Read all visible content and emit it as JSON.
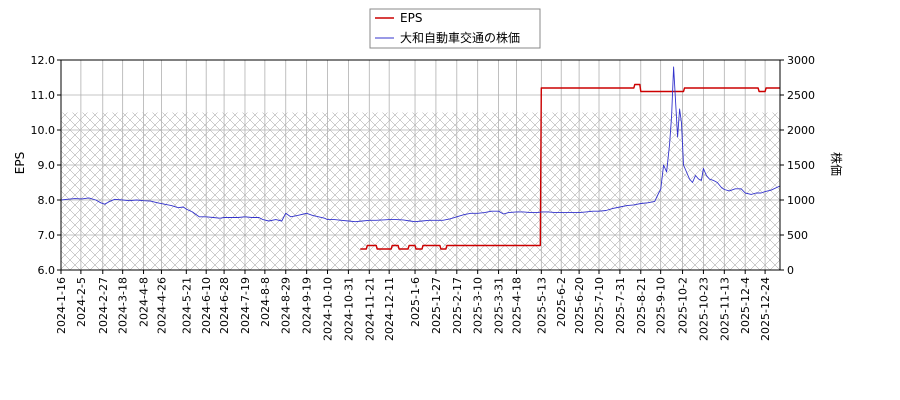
{
  "chart_data": {
    "type": "line",
    "legend": {
      "placement": "top-center",
      "entries": [
        "EPS",
        "大和自動車交通の株価"
      ]
    },
    "left_axis": {
      "label": "EPS",
      "ylim": [
        6.0,
        12.0
      ],
      "ticks": [
        "6.0",
        "7.0",
        "8.0",
        "9.0",
        "10.0",
        "11.0",
        "12.0"
      ]
    },
    "right_axis": {
      "label": "株価",
      "ylim": [
        0,
        3000
      ],
      "ticks": [
        "0",
        "500",
        "1000",
        "1500",
        "2000",
        "2500",
        "3000"
      ]
    },
    "x_range": [
      "2024-01-16",
      "2026-01-08"
    ],
    "x_ticks": [
      "2024-1-16",
      "2024-2-5",
      "2024-2-27",
      "2024-3-18",
      "2024-4-8",
      "2024-4-26",
      "2024-5-21",
      "2024-6-10",
      "2024-6-28",
      "2024-7-19",
      "2024-8-8",
      "2024-8-29",
      "2024-9-19",
      "2024-10-10",
      "2024-10-31",
      "2024-11-21",
      "2024-12-11",
      "2025-1-6",
      "2025-1-27",
      "2025-2-17",
      "2025-3-10",
      "2025-3-31",
      "2025-4-18",
      "2025-5-13",
      "2025-6-2",
      "2025-6-20",
      "2025-7-10",
      "2025-7-31",
      "2025-8-21",
      "2025-9-10",
      "2025-10-2",
      "2025-10-23",
      "2025-11-13",
      "2025-12-4",
      "2025-12-24"
    ],
    "grid": true,
    "hatched_band": {
      "axis": "right",
      "range": [
        0,
        2250
      ]
    },
    "colors": {
      "eps": "#cc0000",
      "price": "#3333cc",
      "grid": "#b0b0b0",
      "hatch": "#999999"
    },
    "series": [
      {
        "name": "EPS",
        "axis": "left",
        "points": [
          [
            "2024-11-12",
            6.6
          ],
          [
            "2024-11-18",
            6.6
          ],
          [
            "2024-11-19",
            6.7
          ],
          [
            "2024-11-28",
            6.7
          ],
          [
            "2024-11-29",
            6.6
          ],
          [
            "2024-12-13",
            6.6
          ],
          [
            "2024-12-14",
            6.7
          ],
          [
            "2024-12-20",
            6.7
          ],
          [
            "2024-12-21",
            6.6
          ],
          [
            "2024-12-30",
            6.6
          ],
          [
            "2024-12-31",
            6.7
          ],
          [
            "2025-01-06",
            6.7
          ],
          [
            "2025-01-07",
            6.6
          ],
          [
            "2025-01-13",
            6.6
          ],
          [
            "2025-01-14",
            6.7
          ],
          [
            "2025-01-31",
            6.7
          ],
          [
            "2025-02-01",
            6.6
          ],
          [
            "2025-02-06",
            6.6
          ],
          [
            "2025-02-07",
            6.7
          ],
          [
            "2025-05-12",
            6.7
          ],
          [
            "2025-05-13",
            11.2
          ],
          [
            "2025-08-14",
            11.2
          ],
          [
            "2025-08-15",
            11.3
          ],
          [
            "2025-08-20",
            11.3
          ],
          [
            "2025-08-21",
            11.1
          ],
          [
            "2025-10-03",
            11.1
          ],
          [
            "2025-10-04",
            11.2
          ],
          [
            "2025-12-17",
            11.2
          ],
          [
            "2025-12-18",
            11.1
          ],
          [
            "2025-12-24",
            11.1
          ],
          [
            "2025-12-25",
            11.2
          ],
          [
            "2026-01-08",
            11.2
          ]
        ]
      },
      {
        "name": "大和自動車交通の株価",
        "axis": "right",
        "points": [
          [
            "2024-01-16",
            1000
          ],
          [
            "2024-01-22",
            1010
          ],
          [
            "2024-01-30",
            1020
          ],
          [
            "2024-02-06",
            1015
          ],
          [
            "2024-02-13",
            1030
          ],
          [
            "2024-02-20",
            1000
          ],
          [
            "2024-02-25",
            960
          ],
          [
            "2024-02-29",
            940
          ],
          [
            "2024-03-05",
            980
          ],
          [
            "2024-03-10",
            1010
          ],
          [
            "2024-03-18",
            1000
          ],
          [
            "2024-03-25",
            990
          ],
          [
            "2024-04-01",
            1000
          ],
          [
            "2024-04-08",
            990
          ],
          [
            "2024-04-15",
            985
          ],
          [
            "2024-04-22",
            960
          ],
          [
            "2024-04-29",
            940
          ],
          [
            "2024-05-06",
            920
          ],
          [
            "2024-05-13",
            890
          ],
          [
            "2024-05-18",
            900
          ],
          [
            "2024-05-21",
            870
          ],
          [
            "2024-05-27",
            830
          ],
          [
            "2024-06-03",
            760
          ],
          [
            "2024-06-10",
            760
          ],
          [
            "2024-06-17",
            750
          ],
          [
            "2024-06-24",
            740
          ],
          [
            "2024-06-28",
            750
          ],
          [
            "2024-07-05",
            750
          ],
          [
            "2024-07-12",
            750
          ],
          [
            "2024-07-19",
            760
          ],
          [
            "2024-07-26",
            750
          ],
          [
            "2024-08-02",
            750
          ],
          [
            "2024-08-06",
            720
          ],
          [
            "2024-08-12",
            700
          ],
          [
            "2024-08-19",
            720
          ],
          [
            "2024-08-25",
            700
          ],
          [
            "2024-08-29",
            810
          ],
          [
            "2024-09-03",
            760
          ],
          [
            "2024-09-10",
            780
          ],
          [
            "2024-09-16",
            800
          ],
          [
            "2024-09-19",
            810
          ],
          [
            "2024-09-25",
            780
          ],
          [
            "2024-10-01",
            760
          ],
          [
            "2024-10-07",
            740
          ],
          [
            "2024-10-10",
            720
          ],
          [
            "2024-10-17",
            720
          ],
          [
            "2024-10-24",
            710
          ],
          [
            "2024-10-31",
            700
          ],
          [
            "2024-11-07",
            690
          ],
          [
            "2024-11-14",
            700
          ],
          [
            "2024-11-21",
            710
          ],
          [
            "2024-11-28",
            710
          ],
          [
            "2024-12-05",
            715
          ],
          [
            "2024-12-11",
            720
          ],
          [
            "2024-12-18",
            720
          ],
          [
            "2024-12-25",
            715
          ],
          [
            "2025-01-01",
            700
          ],
          [
            "2025-01-06",
            690
          ],
          [
            "2025-01-13",
            700
          ],
          [
            "2025-01-20",
            710
          ],
          [
            "2025-01-27",
            710
          ],
          [
            "2025-02-03",
            710
          ],
          [
            "2025-02-10",
            730
          ],
          [
            "2025-02-17",
            760
          ],
          [
            "2025-02-24",
            790
          ],
          [
            "2025-03-03",
            810
          ],
          [
            "2025-03-10",
            810
          ],
          [
            "2025-03-17",
            820
          ],
          [
            "2025-03-24",
            840
          ],
          [
            "2025-03-31",
            840
          ],
          [
            "2025-04-05",
            800
          ],
          [
            "2025-04-10",
            820
          ],
          [
            "2025-04-18",
            830
          ],
          [
            "2025-04-25",
            830
          ],
          [
            "2025-05-02",
            820
          ],
          [
            "2025-05-09",
            820
          ],
          [
            "2025-05-13",
            830
          ],
          [
            "2025-05-20",
            830
          ],
          [
            "2025-05-27",
            820
          ],
          [
            "2025-06-02",
            820
          ],
          [
            "2025-06-09",
            820
          ],
          [
            "2025-06-16",
            820
          ],
          [
            "2025-06-20",
            820
          ],
          [
            "2025-06-27",
            830
          ],
          [
            "2025-07-04",
            840
          ],
          [
            "2025-07-10",
            840
          ],
          [
            "2025-07-17",
            850
          ],
          [
            "2025-07-24",
            880
          ],
          [
            "2025-07-31",
            900
          ],
          [
            "2025-08-07",
            920
          ],
          [
            "2025-08-14",
            930
          ],
          [
            "2025-08-21",
            950
          ],
          [
            "2025-08-28",
            960
          ],
          [
            "2025-09-04",
            980
          ],
          [
            "2025-09-08",
            1100
          ],
          [
            "2025-09-10",
            1150
          ],
          [
            "2025-09-13",
            1500
          ],
          [
            "2025-09-16",
            1400
          ],
          [
            "2025-09-19",
            1800
          ],
          [
            "2025-09-21",
            2200
          ],
          [
            "2025-09-23",
            2900
          ],
          [
            "2025-09-25",
            2400
          ],
          [
            "2025-09-27",
            1900
          ],
          [
            "2025-09-29",
            2300
          ],
          [
            "2025-10-01",
            2100
          ],
          [
            "2025-10-03",
            1500
          ],
          [
            "2025-10-06",
            1400
          ],
          [
            "2025-10-09",
            1300
          ],
          [
            "2025-10-12",
            1250
          ],
          [
            "2025-10-15",
            1350
          ],
          [
            "2025-10-18",
            1300
          ],
          [
            "2025-10-21",
            1280
          ],
          [
            "2025-10-23",
            1450
          ],
          [
            "2025-10-26",
            1350
          ],
          [
            "2025-10-29",
            1300
          ],
          [
            "2025-11-02",
            1280
          ],
          [
            "2025-11-06",
            1250
          ],
          [
            "2025-11-10",
            1180
          ],
          [
            "2025-11-13",
            1150
          ],
          [
            "2025-11-18",
            1130
          ],
          [
            "2025-11-24",
            1160
          ],
          [
            "2025-11-30",
            1160
          ],
          [
            "2025-12-04",
            1100
          ],
          [
            "2025-12-10",
            1080
          ],
          [
            "2025-12-15",
            1100
          ],
          [
            "2025-12-20",
            1100
          ],
          [
            "2025-12-24",
            1120
          ],
          [
            "2025-12-30",
            1140
          ],
          [
            "2026-01-05",
            1180
          ],
          [
            "2026-01-08",
            1200
          ]
        ]
      }
    ]
  }
}
